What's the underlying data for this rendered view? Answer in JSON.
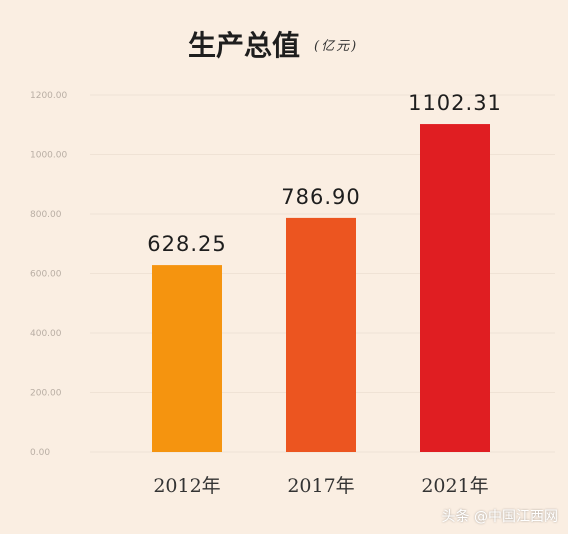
{
  "chart_data": {
    "type": "bar",
    "title": "生产总值",
    "unit": "(亿元)",
    "categories": [
      "2012年",
      "2017年",
      "2021年"
    ],
    "values": [
      628.25,
      786.9,
      1102.31
    ],
    "value_labels": [
      "628.25",
      "786.90",
      "1102.31"
    ],
    "colors": [
      "#f5940f",
      "#ec5520",
      "#e01e22"
    ],
    "yticks": [
      0,
      200,
      400,
      600,
      800,
      1000,
      1200
    ],
    "ytick_labels": [
      "0.00",
      "200.00",
      "400.00",
      "600.00",
      "800.00",
      "1000.00",
      "1200.00"
    ],
    "ylim": [
      0,
      1200
    ],
    "grid": true
  },
  "watermark": "头条 @中国江西网"
}
